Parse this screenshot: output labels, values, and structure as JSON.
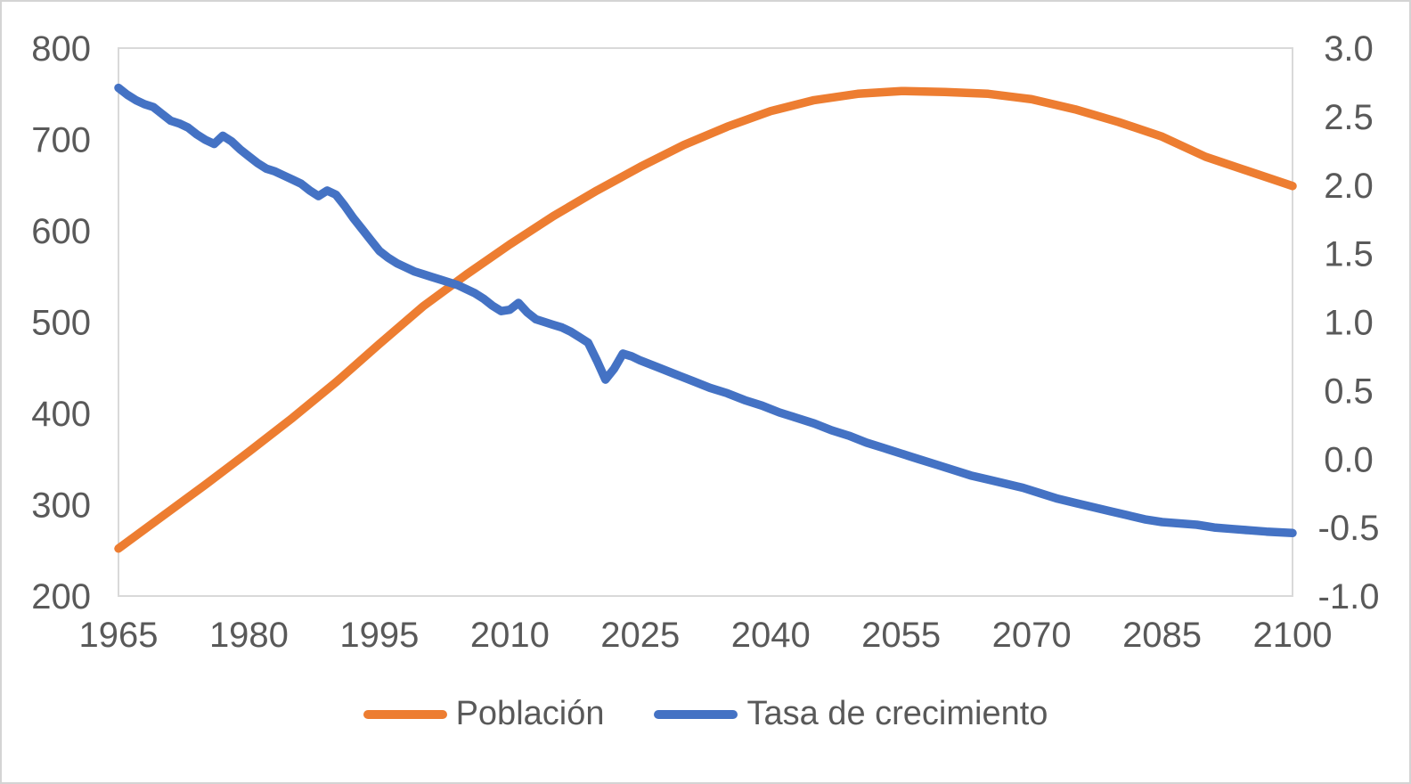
{
  "chart_data": {
    "type": "line",
    "title": "",
    "xlabel": "",
    "ylabel_left": "",
    "ylabel_right": "",
    "grid": false,
    "legend_position": "bottom",
    "x_axis": {
      "range": [
        1965,
        2100
      ],
      "tick_values": [
        1965,
        1980,
        1995,
        2010,
        2025,
        2040,
        2055,
        2070,
        2085,
        2100
      ],
      "tick_labels": [
        "1965",
        "1980",
        "1995",
        "2010",
        "2025",
        "2040",
        "2055",
        "2070",
        "2085",
        "2100"
      ]
    },
    "y_axis_left": {
      "range": [
        200,
        800
      ],
      "tick_values": [
        800,
        700,
        600,
        500,
        400,
        300,
        200
      ],
      "tick_labels": [
        "800",
        "700",
        "600",
        "500",
        "400",
        "300",
        "200"
      ]
    },
    "y_axis_right": {
      "range": [
        -1.0,
        3.0
      ],
      "tick_values": [
        3.0,
        2.5,
        2.0,
        1.5,
        1.0,
        0.5,
        0.0,
        -0.5,
        -1.0
      ],
      "tick_labels": [
        "3.0",
        "2.5",
        "2.0",
        "1.5",
        "1.0",
        "0.5",
        "0.0",
        "-0.5",
        "-1.0"
      ]
    },
    "series": [
      {
        "name": "Población",
        "axis": "left",
        "color": "#ED7D31",
        "x": [
          1965,
          1970,
          1975,
          1980,
          1985,
          1990,
          1995,
          2000,
          2005,
          2010,
          2015,
          2020,
          2025,
          2030,
          2035,
          2040,
          2045,
          2050,
          2055,
          2060,
          2065,
          2070,
          2075,
          2080,
          2085,
          2090,
          2095,
          2100
        ],
        "values": [
          252,
          287,
          322,
          358,
          395,
          434,
          476,
          517,
          552,
          585,
          616,
          644,
          670,
          694,
          714,
          731,
          743,
          750,
          753,
          752,
          750,
          744,
          733,
          719,
          703,
          681,
          665,
          649
        ]
      },
      {
        "name": "Tasa de crecimiento",
        "axis": "right",
        "color": "#4472C4",
        "x": [
          1965,
          1966,
          1967,
          1968,
          1969,
          1970,
          1971,
          1972,
          1973,
          1974,
          1975,
          1976,
          1977,
          1978,
          1979,
          1980,
          1981,
          1982,
          1983,
          1984,
          1985,
          1986,
          1987,
          1988,
          1989,
          1990,
          1991,
          1992,
          1993,
          1994,
          1995,
          1996,
          1997,
          1998,
          1999,
          2000,
          2001,
          2002,
          2003,
          2004,
          2005,
          2006,
          2007,
          2008,
          2009,
          2010,
          2011,
          2012,
          2013,
          2014,
          2015,
          2016,
          2017,
          2018,
          2019,
          2020,
          2021,
          2022,
          2023,
          2024,
          2025,
          2027,
          2029,
          2031,
          2033,
          2035,
          2037,
          2039,
          2041,
          2043,
          2045,
          2047,
          2049,
          2051,
          2053,
          2055,
          2057,
          2059,
          2061,
          2063,
          2065,
          2067,
          2069,
          2071,
          2073,
          2075,
          2077,
          2079,
          2081,
          2083,
          2085,
          2087,
          2089,
          2091,
          2093,
          2095,
          2097,
          2100
        ],
        "values": [
          2.71,
          2.66,
          2.62,
          2.59,
          2.57,
          2.52,
          2.47,
          2.45,
          2.42,
          2.37,
          2.33,
          2.3,
          2.36,
          2.32,
          2.26,
          2.21,
          2.16,
          2.12,
          2.1,
          2.07,
          2.04,
          2.01,
          1.96,
          1.92,
          1.96,
          1.93,
          1.85,
          1.76,
          1.68,
          1.6,
          1.52,
          1.47,
          1.43,
          1.4,
          1.37,
          1.35,
          1.33,
          1.31,
          1.29,
          1.27,
          1.24,
          1.21,
          1.17,
          1.12,
          1.08,
          1.09,
          1.14,
          1.07,
          1.02,
          1.0,
          0.98,
          0.96,
          0.93,
          0.89,
          0.85,
          0.72,
          0.58,
          0.66,
          0.77,
          0.75,
          0.72,
          0.67,
          0.62,
          0.57,
          0.52,
          0.48,
          0.43,
          0.39,
          0.34,
          0.3,
          0.26,
          0.21,
          0.17,
          0.12,
          0.08,
          0.04,
          0.0,
          -0.04,
          -0.08,
          -0.12,
          -0.15,
          -0.18,
          -0.21,
          -0.25,
          -0.29,
          -0.32,
          -0.35,
          -0.38,
          -0.41,
          -0.44,
          -0.46,
          -0.47,
          -0.48,
          -0.5,
          -0.51,
          -0.52,
          -0.53,
          -0.54
        ]
      }
    ]
  },
  "styles": {
    "axis_text_color": "#595959",
    "plot_border_color": "#D9D9D9",
    "frame_border_color": "#D4D4D4",
    "background": "#FFFFFF",
    "line_width": 9.5
  }
}
